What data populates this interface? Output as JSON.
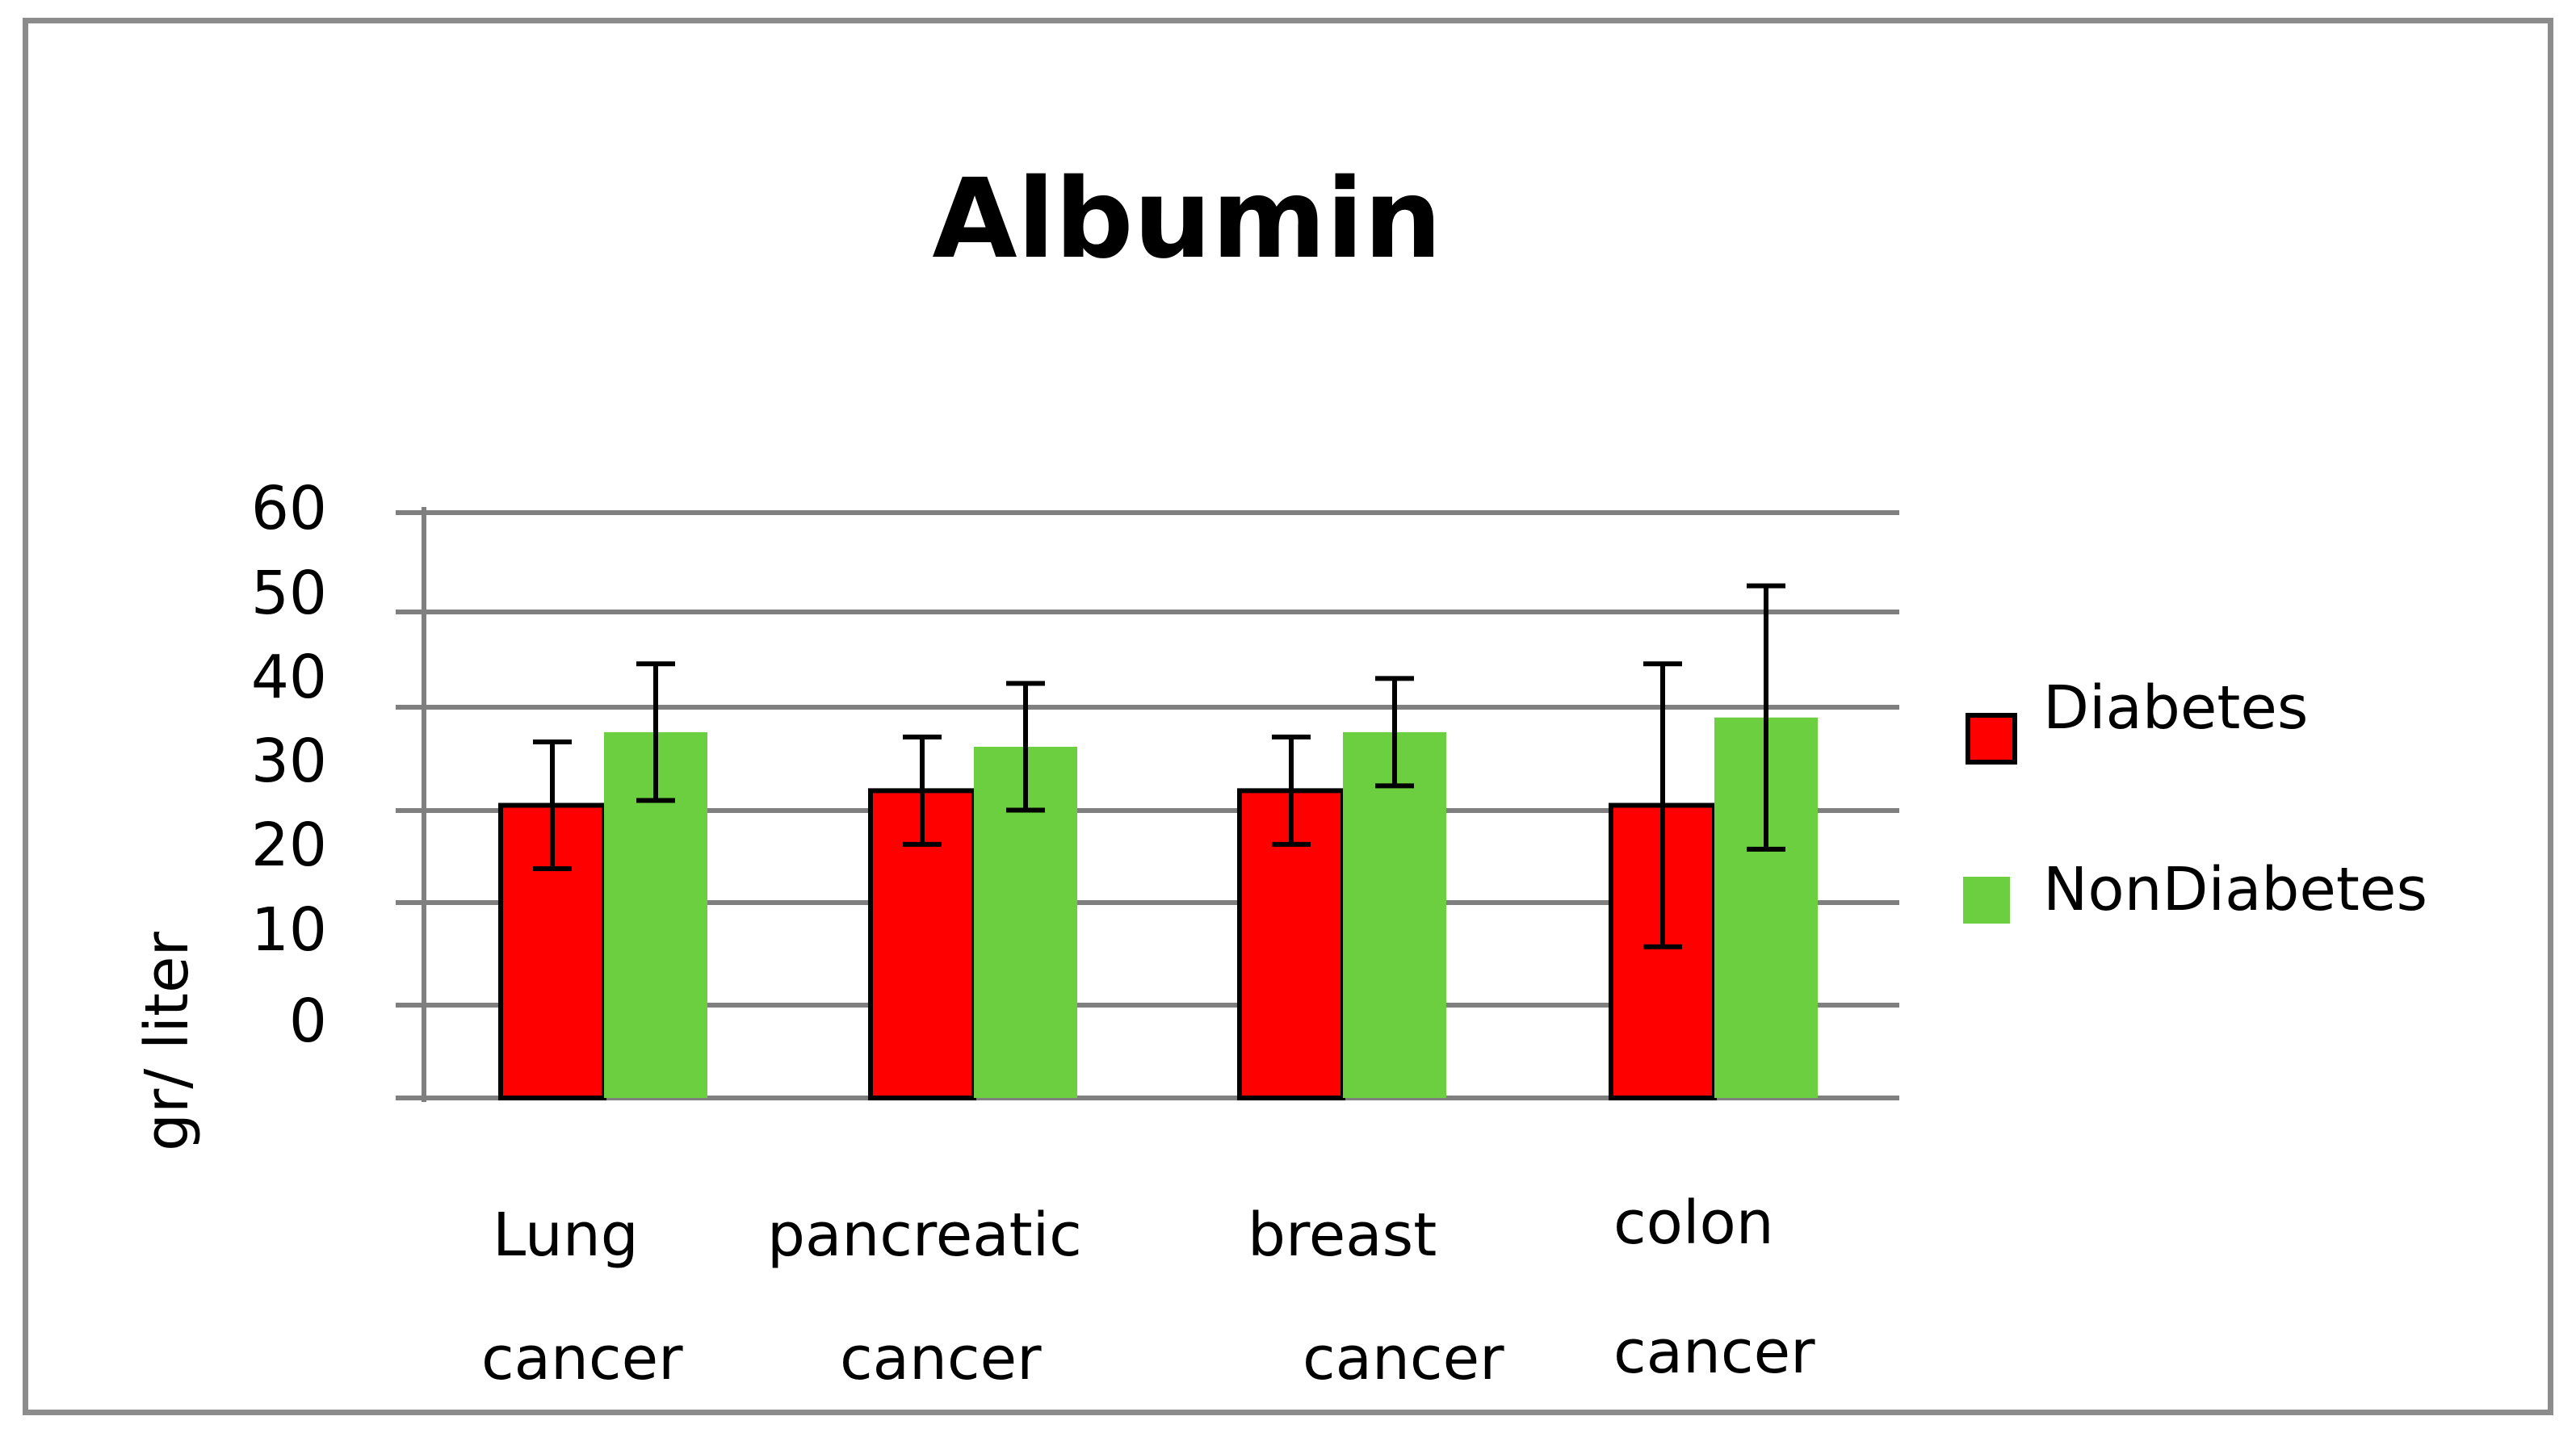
{
  "chart_data": {
    "type": "bar",
    "title": "Albumin",
    "xlabel": "",
    "ylabel": "gr/ liter",
    "ylim": [
      0,
      60
    ],
    "yticks": [
      "60",
      "50",
      "40",
      "30",
      "20",
      "10",
      "0"
    ],
    "grid": true,
    "legend_position": "right",
    "categories": [
      {
        "line1": "Lung",
        "line2": "cancer"
      },
      {
        "line1": "pancreatic",
        "line2": "cancer"
      },
      {
        "line1": "breast",
        "line2": "cancer"
      },
      {
        "line1": "colon",
        "line2": "cancer"
      }
    ],
    "series": [
      {
        "name": "Diabetes",
        "color": "#ff0000",
        "values": [
          30,
          31.5,
          31.5,
          30
        ],
        "errors": [
          6.5,
          5.5,
          5.5,
          14.5
        ]
      },
      {
        "name": "NonDiabetes",
        "color": "#6ccf3f",
        "values": [
          37.5,
          36,
          37.5,
          39
        ],
        "errors": [
          7,
          6.5,
          5.5,
          13.5
        ]
      }
    ]
  }
}
